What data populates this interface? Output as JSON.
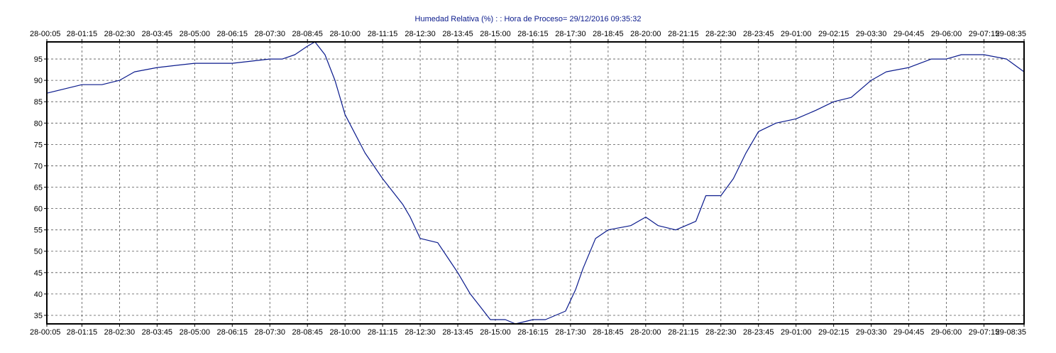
{
  "chart_data": {
    "type": "line",
    "title": "Humedad Relativa (%) : : Hora de Proceso= 29/12/2016 09:35:32",
    "xlabel": "",
    "ylabel": "",
    "x_tick_labels": [
      "28-00:05",
      "28-01:15",
      "28-02:30",
      "28-03:45",
      "28-05:00",
      "28-06:15",
      "28-07:30",
      "28-08:45",
      "28-10:00",
      "28-11:15",
      "28-12:30",
      "28-13:45",
      "28-15:00",
      "28-16:15",
      "28-17:30",
      "28-18:45",
      "28-20:00",
      "28-21:15",
      "28-22:30",
      "28-23:45",
      "29-01:00",
      "29-02:15",
      "29-03:30",
      "29-04:45",
      "29-06:00",
      "29-07:15",
      "29-08:35"
    ],
    "y_ticks": [
      35,
      40,
      45,
      50,
      55,
      60,
      65,
      70,
      75,
      80,
      85,
      90,
      95
    ],
    "ylim": [
      33,
      99
    ],
    "grid": true,
    "legend": "none",
    "line_color": "#0a1a8c",
    "series": [
      {
        "x": [
          "28-00:05",
          "28-00:40",
          "28-01:15",
          "28-01:55",
          "28-02:30",
          "28-03:00",
          "28-03:45",
          "28-05:00",
          "28-06:15",
          "28-07:30",
          "28-07:55",
          "28-08:20",
          "28-08:45",
          "28-09:00",
          "28-09:20",
          "28-09:40",
          "28-10:00",
          "28-10:40",
          "28-11:15",
          "28-11:55",
          "28-12:10",
          "28-12:30",
          "28-13:05",
          "28-13:45",
          "28-14:10",
          "28-14:30",
          "28-14:50",
          "28-15:20",
          "28-15:40",
          "28-16:15",
          "28-16:40",
          "28-17:00",
          "28-17:20",
          "28-17:40",
          "28-17:55",
          "28-18:20",
          "28-18:45",
          "28-19:30",
          "28-20:00",
          "28-20:25",
          "28-21:00",
          "28-21:20",
          "28-21:40",
          "28-22:00",
          "28-22:30",
          "28-22:55",
          "28-23:20",
          "28-23:45",
          "29-00:20",
          "29-01:00",
          "29-01:40",
          "29-02:15",
          "29-02:50",
          "29-03:30",
          "29-04:00",
          "29-04:45",
          "29-05:30",
          "29-06:00",
          "29-06:30",
          "29-07:15",
          "29-08:00",
          "29-08:35"
        ],
        "values": [
          87,
          88,
          89,
          89,
          90,
          92,
          93,
          94,
          94,
          95,
          95,
          96,
          98,
          99,
          96,
          90,
          82,
          73,
          67,
          61,
          58,
          53,
          52,
          45,
          40,
          37,
          34,
          34,
          33,
          34,
          34,
          35,
          36,
          41,
          46,
          53,
          55,
          56,
          58,
          56,
          55,
          56,
          57,
          63,
          63,
          67,
          73,
          78,
          80,
          81,
          83,
          85,
          86,
          90,
          92,
          93,
          95,
          95,
          96,
          96,
          95,
          92
        ]
      }
    ]
  }
}
